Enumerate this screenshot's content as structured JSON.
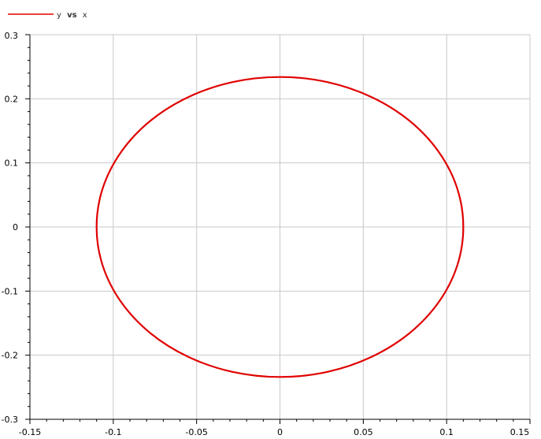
{
  "chart_data": {
    "type": "line",
    "title": "",
    "xlabel": "",
    "ylabel": "",
    "xlim": [
      -0.15,
      0.15
    ],
    "ylim": [
      -0.3,
      0.3
    ],
    "x_ticks": [
      -0.15,
      -0.1,
      -0.05,
      0,
      0.05,
      0.1,
      0.15
    ],
    "y_ticks": [
      -0.3,
      -0.2,
      -0.1,
      0,
      0.1,
      0.2,
      0.3
    ],
    "x_tick_labels": [
      "-0.15",
      "-0.1",
      "-0.05",
      "0",
      "0.05",
      "0.1",
      "0.15"
    ],
    "y_tick_labels": [
      "-0.3",
      "-0.2",
      "-0.1",
      "0",
      "0.1",
      "0.2",
      "0.3"
    ],
    "grid": true,
    "legend": {
      "placement": "top-left",
      "entries": [
        {
          "parts": [
            "y",
            "vs",
            "x"
          ],
          "color": "#e00000"
        }
      ]
    },
    "series": [
      {
        "color": "#e00000",
        "x": [
          0.11,
          0.1063,
          0.0953,
          0.0778,
          0.055,
          0.0285,
          0,
          -0.0285,
          -0.055,
          -0.0778,
          -0.0953,
          -0.1063,
          -0.11,
          -0.1063,
          -0.0953,
          -0.0778,
          -0.055,
          -0.0285,
          0,
          0.0285,
          0.055,
          0.0778,
          0.0953,
          0.1063,
          0.11
        ],
        "y": [
          0,
          0.0606,
          0.117,
          0.1655,
          0.2026,
          0.226,
          0.234,
          0.226,
          0.2026,
          0.1655,
          0.117,
          0.0606,
          0,
          -0.0606,
          -0.117,
          -0.1655,
          -0.2026,
          -0.226,
          -0.234,
          -0.226,
          -0.2026,
          -0.1655,
          -0.117,
          -0.0606,
          0
        ]
      }
    ]
  }
}
